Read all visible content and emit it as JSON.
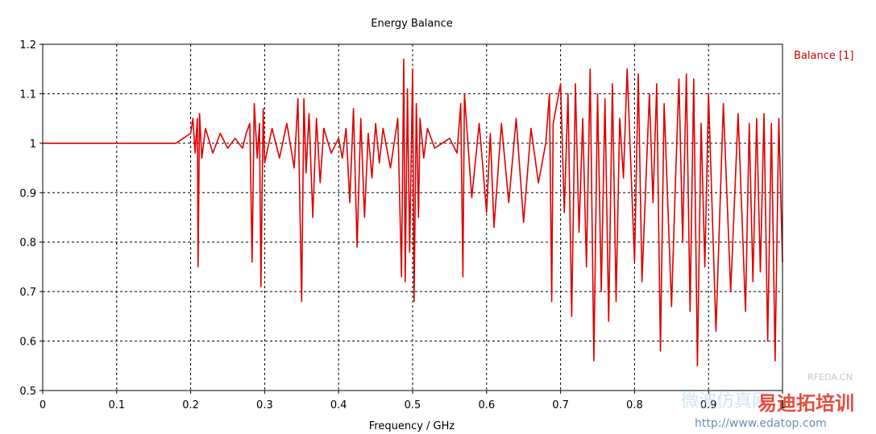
{
  "chart_data": {
    "type": "line",
    "title": "Energy Balance",
    "xlabel": "Frequency / GHz",
    "ylabel": "",
    "xlim": [
      0,
      1
    ],
    "ylim": [
      0.5,
      1.2
    ],
    "x_ticks": [
      "0",
      "0.1",
      "0.2",
      "0.3",
      "0.4",
      "0.5",
      "0.6",
      "0.7",
      "0.8",
      "0.9",
      "1"
    ],
    "y_ticks": [
      "1.2",
      "1.1",
      "1",
      "0.9",
      "0.8",
      "0.7",
      "0.6",
      "0.5"
    ],
    "grid": true,
    "legend_position": "right",
    "series": [
      {
        "name": "Balance [1]",
        "color": "#dd0000",
        "x": [
          0,
          0.02,
          0.05,
          0.1,
          0.15,
          0.18,
          0.2,
          0.203,
          0.206,
          0.209,
          0.21,
          0.212,
          0.215,
          0.22,
          0.23,
          0.24,
          0.25,
          0.26,
          0.27,
          0.275,
          0.28,
          0.283,
          0.286,
          0.29,
          0.293,
          0.295,
          0.298,
          0.3,
          0.31,
          0.32,
          0.33,
          0.34,
          0.345,
          0.35,
          0.353,
          0.356,
          0.36,
          0.365,
          0.37,
          0.375,
          0.38,
          0.39,
          0.4,
          0.405,
          0.41,
          0.415,
          0.42,
          0.425,
          0.43,
          0.435,
          0.44,
          0.445,
          0.45,
          0.455,
          0.46,
          0.47,
          0.48,
          0.485,
          0.488,
          0.49,
          0.493,
          0.496,
          0.5,
          0.502,
          0.505,
          0.508,
          0.51,
          0.515,
          0.52,
          0.53,
          0.54,
          0.55,
          0.56,
          0.565,
          0.568,
          0.57,
          0.58,
          0.59,
          0.6,
          0.605,
          0.61,
          0.62,
          0.63,
          0.64,
          0.65,
          0.66,
          0.67,
          0.68,
          0.685,
          0.688,
          0.69,
          0.7,
          0.705,
          0.71,
          0.715,
          0.72,
          0.725,
          0.73,
          0.735,
          0.74,
          0.745,
          0.75,
          0.755,
          0.76,
          0.765,
          0.77,
          0.775,
          0.78,
          0.785,
          0.79,
          0.8,
          0.805,
          0.81,
          0.82,
          0.825,
          0.83,
          0.835,
          0.84,
          0.85,
          0.855,
          0.86,
          0.865,
          0.87,
          0.875,
          0.88,
          0.885,
          0.89,
          0.895,
          0.9,
          0.91,
          0.92,
          0.93,
          0.94,
          0.95,
          0.955,
          0.96,
          0.965,
          0.97,
          0.975,
          0.98,
          0.985,
          0.99,
          0.995,
          1.0
        ],
        "y": [
          1.0,
          1.0,
          1.0,
          1.0,
          1.0,
          1.0,
          1.02,
          1.05,
          0.98,
          1.05,
          0.75,
          1.06,
          0.97,
          1.03,
          0.98,
          1.02,
          0.99,
          1.01,
          0.99,
          1.02,
          1.04,
          0.76,
          1.08,
          0.97,
          1.04,
          0.71,
          1.07,
          0.96,
          1.03,
          0.97,
          1.04,
          0.95,
          1.09,
          0.68,
          1.09,
          0.94,
          1.06,
          0.85,
          1.05,
          0.92,
          1.03,
          0.98,
          1.01,
          0.97,
          1.03,
          0.88,
          1.07,
          0.79,
          1.05,
          0.85,
          1.02,
          0.93,
          1.04,
          0.96,
          1.03,
          0.95,
          1.05,
          0.73,
          1.17,
          0.72,
          1.11,
          0.78,
          1.15,
          0.68,
          1.08,
          0.85,
          1.05,
          0.97,
          1.03,
          0.99,
          1.0,
          1.01,
          0.98,
          1.08,
          0.73,
          1.1,
          0.89,
          1.04,
          0.86,
          1.02,
          0.83,
          1.04,
          0.88,
          1.05,
          0.84,
          1.03,
          0.92,
          1.0,
          1.1,
          0.68,
          1.04,
          1.12,
          0.86,
          1.1,
          0.65,
          1.12,
          0.82,
          1.05,
          0.75,
          1.15,
          0.56,
          1.1,
          0.7,
          1.09,
          0.64,
          1.12,
          0.68,
          1.05,
          0.93,
          1.15,
          0.76,
          1.14,
          0.72,
          1.1,
          0.88,
          1.12,
          0.58,
          1.08,
          0.67,
          0.91,
          1.13,
          0.8,
          1.14,
          0.66,
          1.13,
          0.55,
          1.04,
          0.75,
          1.1,
          0.62,
          1.08,
          0.7,
          1.06,
          0.66,
          1.04,
          0.72,
          1.05,
          0.74,
          1.06,
          0.6,
          1.04,
          0.56,
          1.05,
          0.76
        ]
      }
    ]
  },
  "watermark": {
    "site_cn": "微波仿真网",
    "brand_cn": "易迪拓培训",
    "brand_en": "RFEDA.CN",
    "url": "http://www.edatop.com"
  }
}
